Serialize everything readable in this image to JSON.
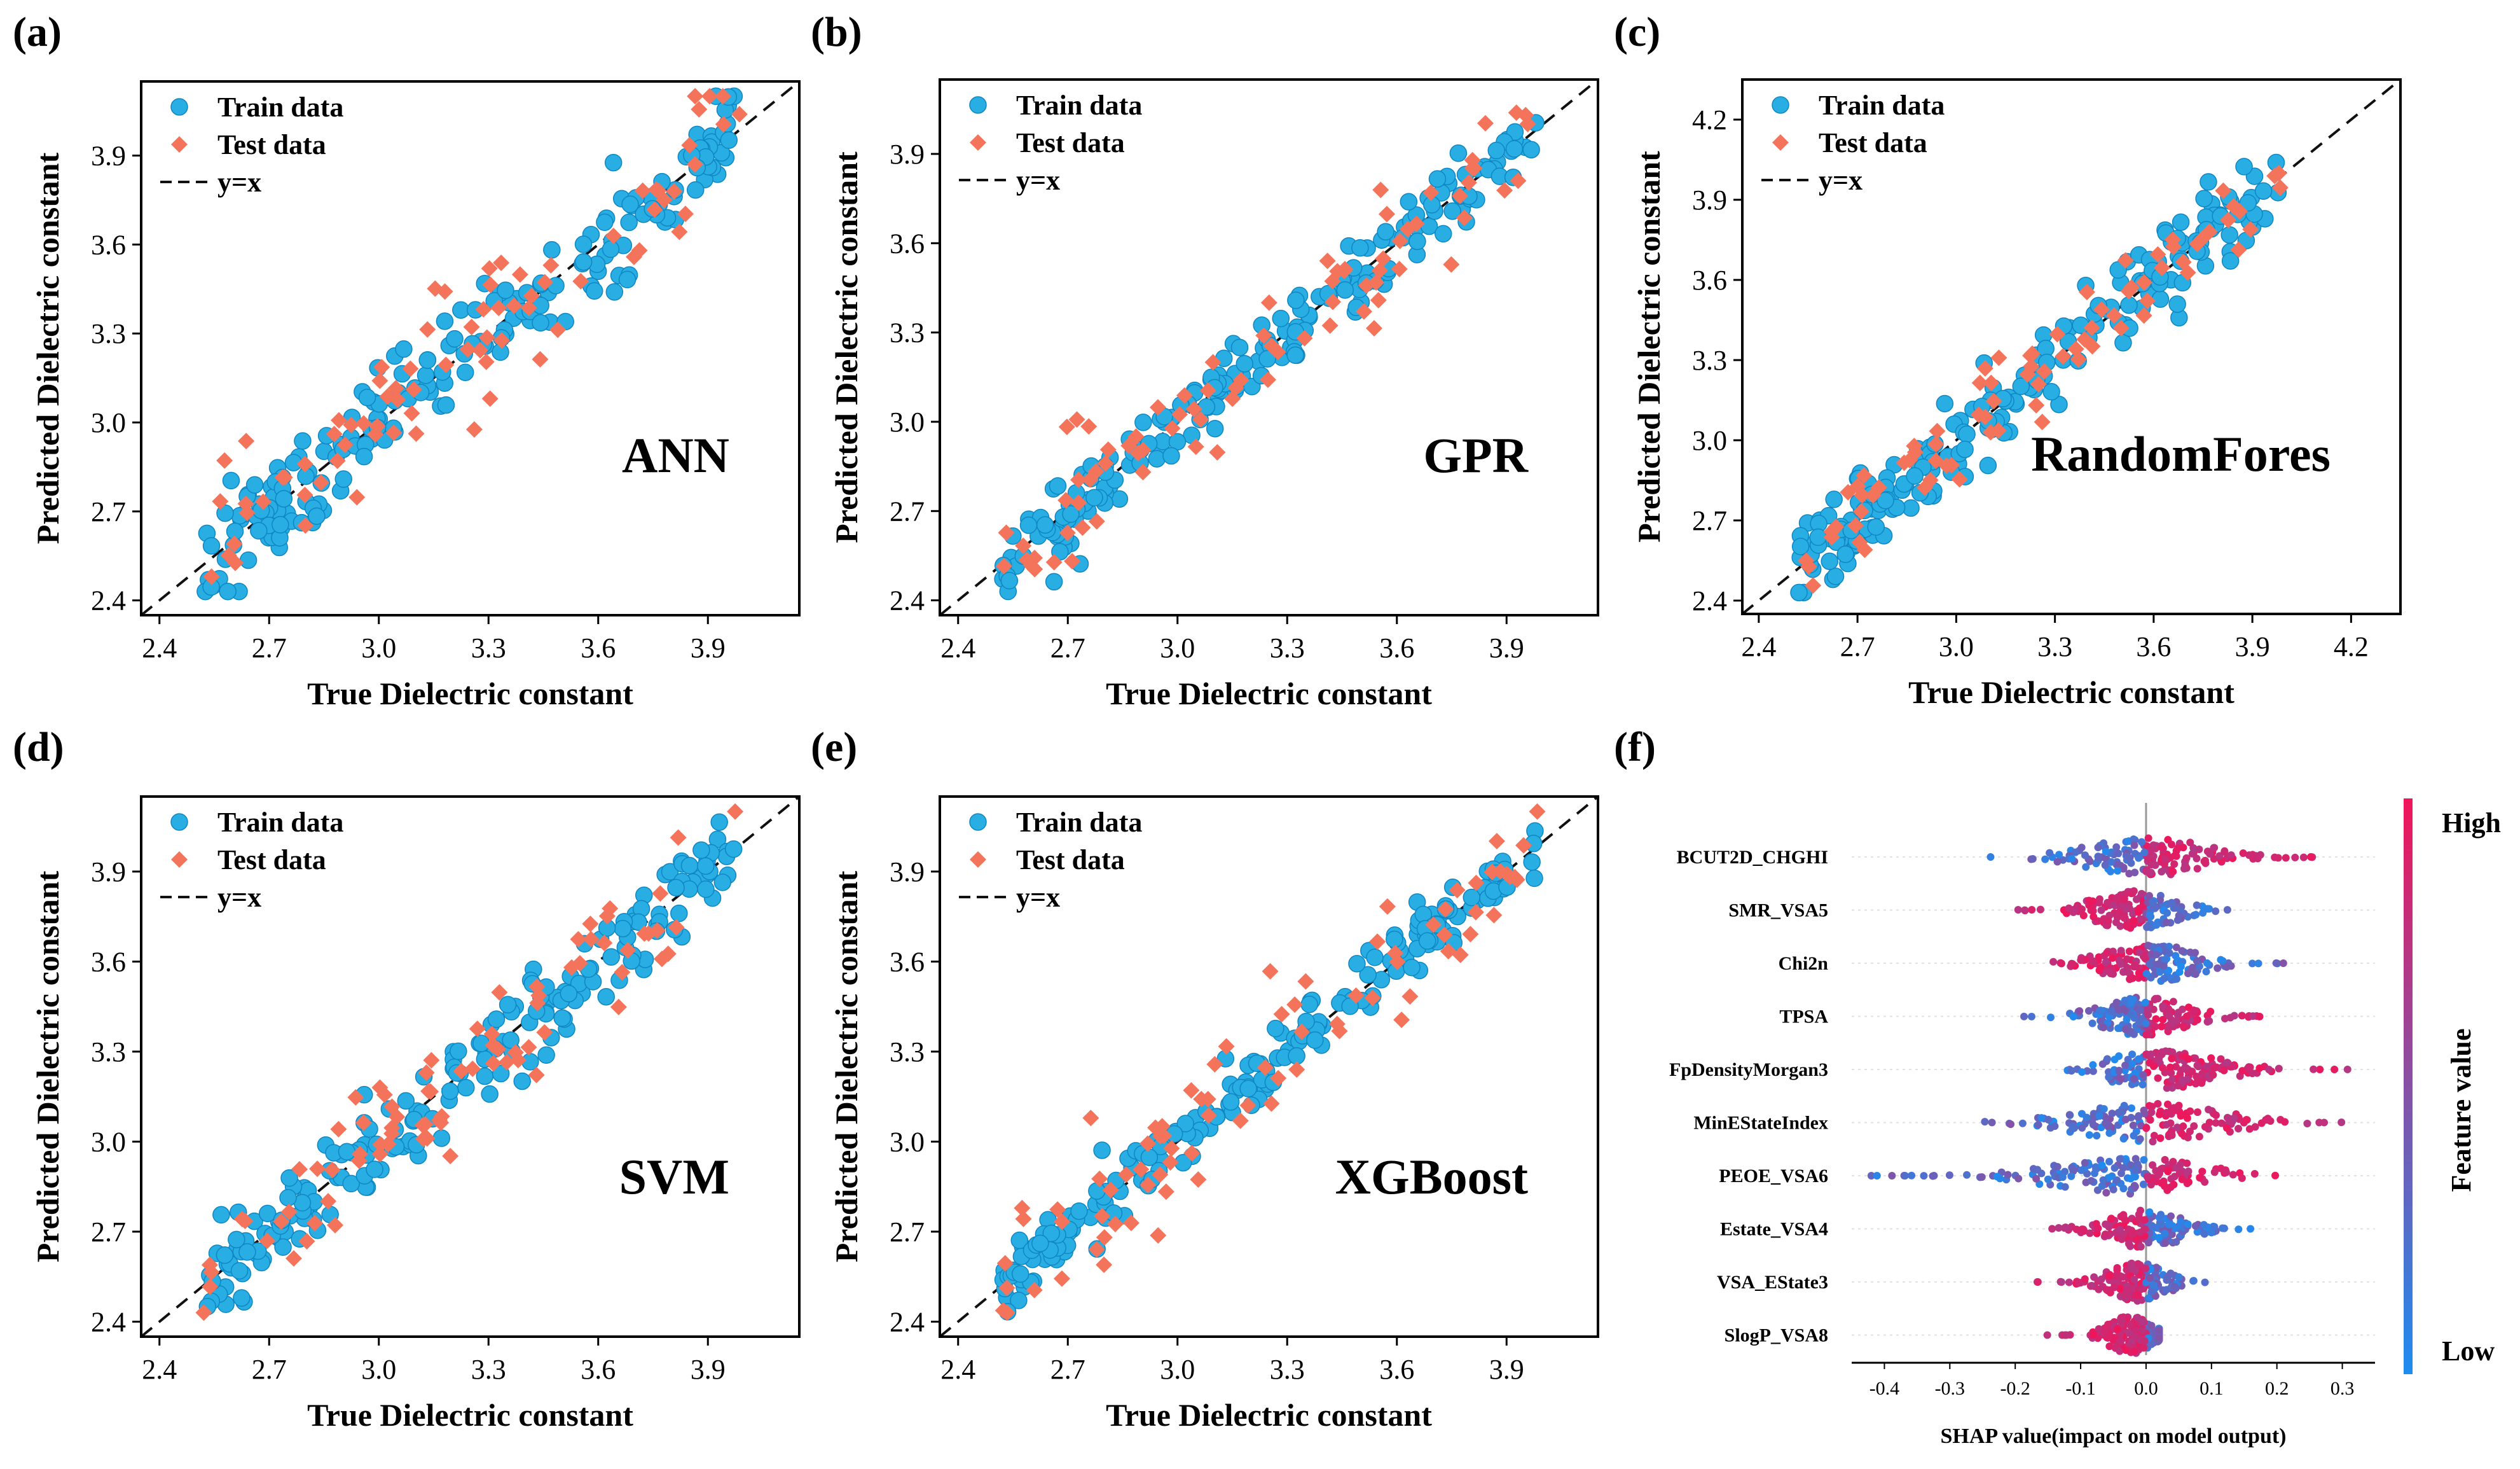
{
  "figure": {
    "panels": [
      {
        "label": "(a)",
        "model": "ANN"
      },
      {
        "label": "(b)",
        "model": "GPR"
      },
      {
        "label": "(c)",
        "model": "RandomFores"
      },
      {
        "label": "(d)",
        "model": "SVM"
      },
      {
        "label": "(e)",
        "model": "XGBoost"
      },
      {
        "label": "(f)"
      }
    ],
    "colors": {
      "train": "#29aee4",
      "test": "#f4735b",
      "high": "#f0155a",
      "low": "#1e8cf0"
    }
  },
  "chart_data": [
    {
      "type": "scatter",
      "panel": "(a)",
      "model": "ANN",
      "xlabel": "True Dielectric constant",
      "ylabel": "Predicted Dielectric constant",
      "xlim": [
        2.35,
        4.15
      ],
      "ylim": [
        2.35,
        4.15
      ],
      "xticks": [
        "2.4",
        "2.7",
        "3.0",
        "3.3",
        "3.6",
        "3.9"
      ],
      "yticks": [
        "2.4",
        "2.7",
        "3.0",
        "3.3",
        "3.6",
        "3.9"
      ],
      "legend": [
        "Train data",
        "Test data",
        "y=x"
      ],
      "legend_position": "top-left",
      "series": [
        {
          "name": "Train data",
          "spread": 0.09,
          "n": 200
        },
        {
          "name": "Test data",
          "spread": 0.11,
          "n": 80
        },
        {
          "name": "y=x"
        }
      ]
    },
    {
      "type": "scatter",
      "panel": "(b)",
      "model": "GPR",
      "xlabel": "True Dielectric constant",
      "ylabel": "Predicted Dielectric constant",
      "xlim": [
        2.35,
        4.15
      ],
      "ylim": [
        2.35,
        4.15
      ],
      "xticks": [
        "2.4",
        "2.7",
        "3.0",
        "3.3",
        "3.6",
        "3.9"
      ],
      "yticks": [
        "2.4",
        "2.7",
        "3.0",
        "3.3",
        "3.6",
        "3.9"
      ],
      "legend": [
        "Train data",
        "Test data",
        "y=x"
      ],
      "legend_position": "top-left",
      "series": [
        {
          "name": "Train data",
          "spread": 0.06,
          "n": 200
        },
        {
          "name": "Test data",
          "spread": 0.09,
          "n": 80
        },
        {
          "name": "y=x"
        }
      ]
    },
    {
      "type": "scatter",
      "panel": "(c)",
      "model": "RandomFores",
      "xlabel": "True Dielectric constant",
      "ylabel": "Predicted Dielectric constant",
      "xlim": [
        2.35,
        4.35
      ],
      "ylim": [
        2.35,
        4.35
      ],
      "xticks": [
        "2.4",
        "2.7",
        "3.0",
        "3.3",
        "3.6",
        "3.9",
        "4.2"
      ],
      "yticks": [
        "2.4",
        "2.7",
        "3.0",
        "3.3",
        "3.6",
        "3.9",
        "4.2"
      ],
      "legend": [
        "Train data",
        "Test data",
        "y=x"
      ],
      "legend_position": "top-left",
      "series": [
        {
          "name": "Train data",
          "spread": 0.08,
          "n": 200
        },
        {
          "name": "Test data",
          "spread": 0.09,
          "n": 80
        },
        {
          "name": "y=x"
        }
      ]
    },
    {
      "type": "scatter",
      "panel": "(d)",
      "model": "SVM",
      "xlabel": "True Dielectric constant",
      "ylabel": "Predicted Dielectric constant",
      "xlim": [
        2.35,
        4.15
      ],
      "ylim": [
        2.35,
        4.15
      ],
      "xticks": [
        "2.4",
        "2.7",
        "3.0",
        "3.3",
        "3.6",
        "3.9"
      ],
      "yticks": [
        "2.4",
        "2.7",
        "3.0",
        "3.3",
        "3.6",
        "3.9"
      ],
      "legend": [
        "Train data",
        "Test data",
        "y=x"
      ],
      "legend_position": "top-left",
      "series": [
        {
          "name": "Train data",
          "spread": 0.08,
          "n": 200
        },
        {
          "name": "Test data",
          "spread": 0.1,
          "n": 80
        },
        {
          "name": "y=x"
        }
      ]
    },
    {
      "type": "scatter",
      "panel": "(e)",
      "model": "XGBoost",
      "xlabel": "True Dielectric constant",
      "ylabel": "Predicted Dielectric constant",
      "xlim": [
        2.35,
        4.15
      ],
      "ylim": [
        2.35,
        4.15
      ],
      "xticks": [
        "2.4",
        "2.7",
        "3.0",
        "3.3",
        "3.6",
        "3.9"
      ],
      "yticks": [
        "2.4",
        "2.7",
        "3.0",
        "3.3",
        "3.6",
        "3.9"
      ],
      "legend": [
        "Train data",
        "Test data",
        "y=x"
      ],
      "legend_position": "top-left",
      "series": [
        {
          "name": "Train data",
          "spread": 0.05,
          "n": 200
        },
        {
          "name": "Test data",
          "spread": 0.11,
          "n": 80
        },
        {
          "name": "y=x"
        }
      ]
    },
    {
      "type": "scatter",
      "panel": "(f)",
      "subtype": "shap-beeswarm",
      "xlabel": "SHAP value(impact on model output)",
      "xlim": [
        -0.45,
        0.35
      ],
      "xticks": [
        "-0.4",
        "-0.3",
        "-0.2",
        "-0.1",
        "0.0",
        "0.1",
        "0.2",
        "0.3"
      ],
      "colorbar": {
        "label": "Feature value",
        "high": "High",
        "low": "Low"
      },
      "features": [
        {
          "name": "BCUT2D_CHGHI",
          "min": -0.25,
          "max": 0.27
        },
        {
          "name": "SMR_VSA5",
          "min": -0.24,
          "max": 0.13
        },
        {
          "name": "Chi2n",
          "min": -0.18,
          "max": 0.22
        },
        {
          "name": "TPSA",
          "min": -0.2,
          "max": 0.18
        },
        {
          "name": "FpDensityMorgan3",
          "min": -0.18,
          "max": 0.32
        },
        {
          "name": "MinEStateIndex",
          "min": -0.29,
          "max": 0.33
        },
        {
          "name": "PEOE_VSA6",
          "min": -0.42,
          "max": 0.22
        },
        {
          "name": "Estate_VSA4",
          "min": -0.17,
          "max": 0.17
        },
        {
          "name": "VSA_EState3",
          "min": -0.17,
          "max": 0.09
        },
        {
          "name": "SlogP_VSA8",
          "min": -0.17,
          "max": 0.02
        }
      ]
    }
  ]
}
